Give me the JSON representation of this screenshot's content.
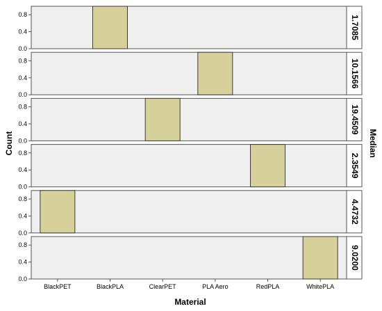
{
  "chart_data": {
    "type": "bar",
    "title": "",
    "xlabel": "Material",
    "ylabel": "Count",
    "facet_label": "Median",
    "categories": [
      "BlackPET",
      "BlackPLA",
      "ClearPET",
      "PLA Aero",
      "RedPLA",
      "WhitePLA"
    ],
    "ylim": [
      0,
      1.0
    ],
    "yticks": [
      "0.0",
      "0.4",
      "0.8"
    ],
    "grid": false,
    "colors": {
      "bar_fill": "#d6d19b",
      "bar_stroke": "#3a3a3a",
      "panel_bg": "#efefef",
      "panel_border": "#555555"
    },
    "panels": [
      {
        "median": "1.7085",
        "values": [
          0,
          1,
          0,
          0,
          0,
          0
        ]
      },
      {
        "median": "10.1566",
        "values": [
          0,
          0,
          0,
          1,
          0,
          0
        ]
      },
      {
        "median": "19.4509",
        "values": [
          0,
          0,
          1,
          0,
          0,
          0
        ]
      },
      {
        "median": "2.3549",
        "values": [
          0,
          0,
          0,
          0,
          1,
          0
        ]
      },
      {
        "median": "4.4732",
        "values": [
          1,
          0,
          0,
          0,
          0,
          0
        ]
      },
      {
        "median": "9.0200",
        "values": [
          0,
          0,
          0,
          0,
          0,
          1
        ]
      }
    ]
  }
}
